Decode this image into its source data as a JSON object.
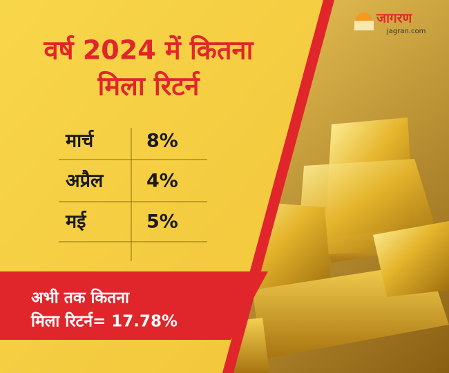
{
  "brand": {
    "name": "जागरण",
    "site": "jagran.com"
  },
  "title": [
    "वर्ष 2024 में कितना",
    "मिला रिटर्न"
  ],
  "table": {
    "rows": [
      [
        "मार्च",
        "8%"
      ],
      [
        "अप्रैल",
        "4%"
      ],
      [
        "मई",
        "5%"
      ]
    ]
  },
  "footer": [
    "अभी तक कितना",
    "मिला रिटर्न= 17.78%"
  ]
}
